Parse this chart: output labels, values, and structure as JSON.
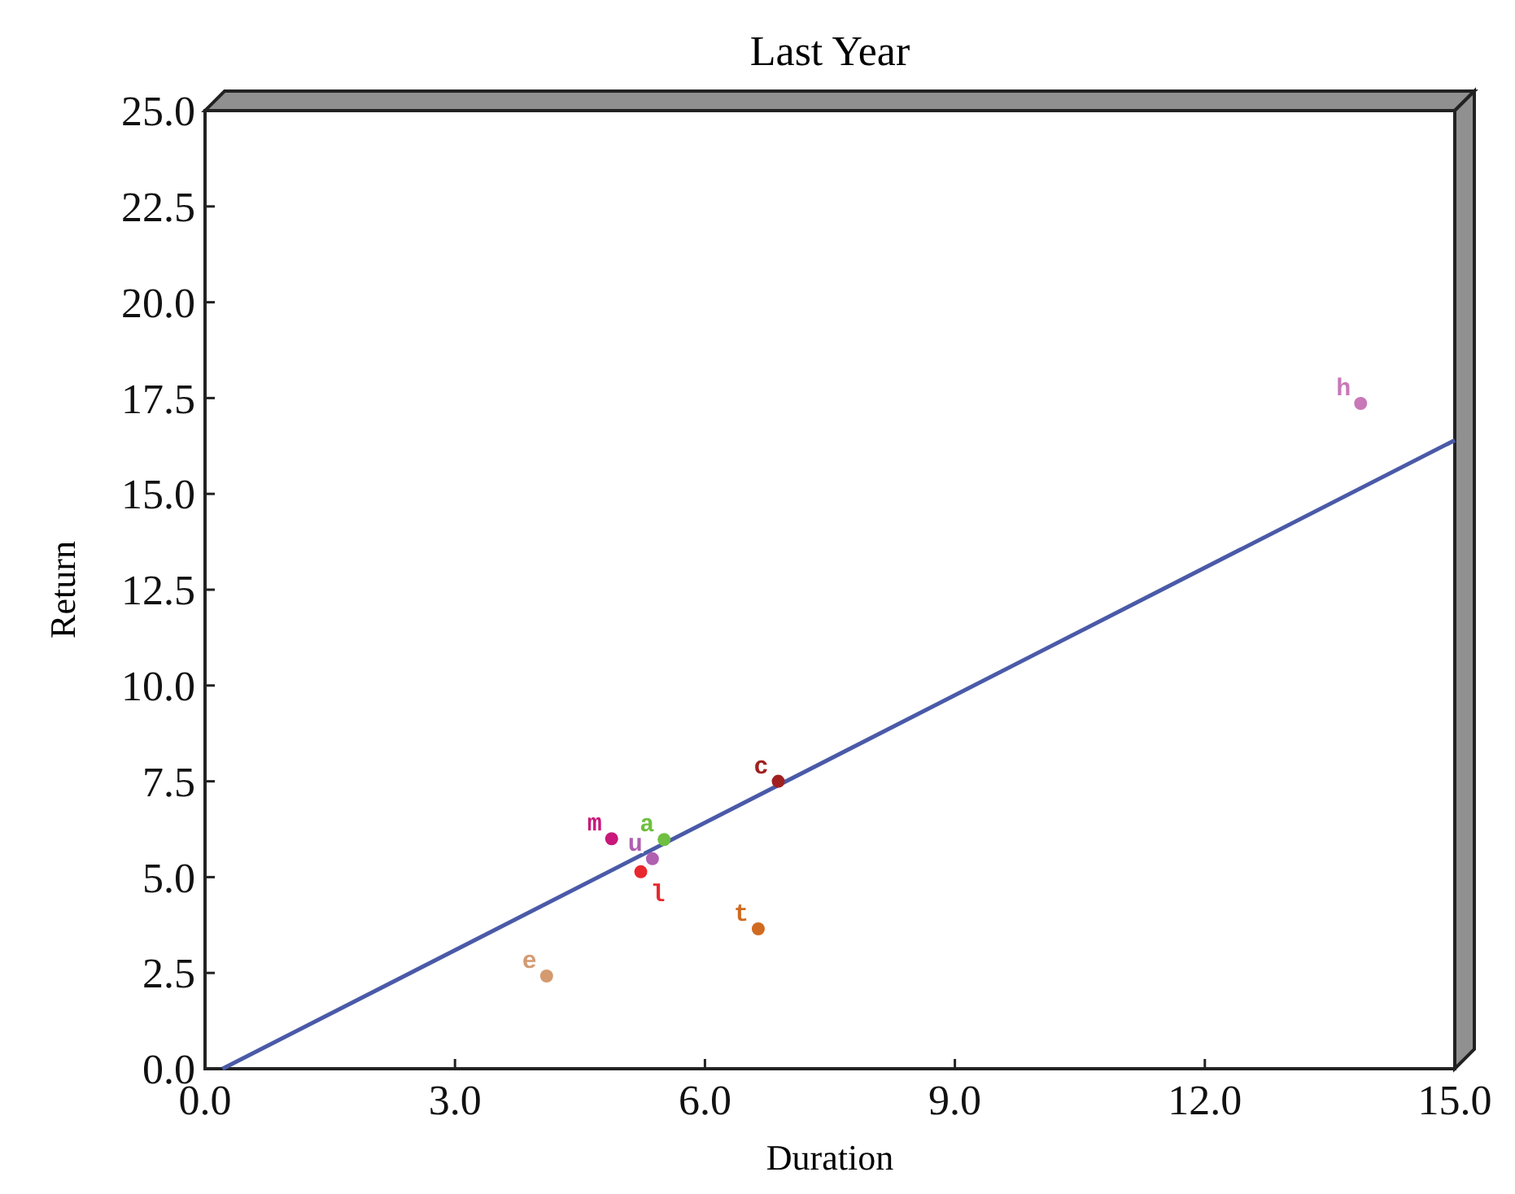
{
  "chart_data": {
    "type": "scatter",
    "title": "Last Year",
    "xlabel": "Duration",
    "ylabel": "Return",
    "xlim": [
      0,
      15
    ],
    "ylim": [
      0,
      25
    ],
    "xticks": [
      {
        "value": 0,
        "label": "0.0"
      },
      {
        "value": 3,
        "label": "3.0"
      },
      {
        "value": 6,
        "label": "6.0"
      },
      {
        "value": 9,
        "label": "9.0"
      },
      {
        "value": 12,
        "label": "12.0"
      },
      {
        "value": 15,
        "label": "15.0"
      }
    ],
    "yticks": [
      {
        "value": 0,
        "label": "0.0"
      },
      {
        "value": 2.5,
        "label": "2.5"
      },
      {
        "value": 5,
        "label": "5.0"
      },
      {
        "value": 7.5,
        "label": "7.5"
      },
      {
        "value": 10,
        "label": "10.0"
      },
      {
        "value": 12.5,
        "label": "12.5"
      },
      {
        "value": 15,
        "label": "15.0"
      },
      {
        "value": 17.5,
        "label": "17.5"
      },
      {
        "value": 20,
        "label": "20.0"
      },
      {
        "value": 22.5,
        "label": "22.5"
      },
      {
        "value": 25,
        "label": "25.0"
      }
    ],
    "grid": false,
    "legend": false,
    "marker": "circle",
    "series": [
      {
        "name": "m",
        "color": "#c8187a",
        "x": [
          4.88
        ],
        "values": [
          6.0
        ]
      },
      {
        "name": "a",
        "color": "#6fbf40",
        "x": [
          5.51
        ],
        "values": [
          5.98
        ]
      },
      {
        "name": "u",
        "color": "#b060b0",
        "x": [
          5.37
        ],
        "values": [
          5.48
        ]
      },
      {
        "name": "l",
        "color": "#e8282e",
        "x": [
          5.23
        ],
        "values": [
          5.14
        ]
      },
      {
        "name": "c",
        "color": "#a02020",
        "x": [
          6.88
        ],
        "values": [
          7.5
        ]
      },
      {
        "name": "t",
        "color": "#d06a20",
        "x": [
          6.64
        ],
        "values": [
          3.65
        ]
      },
      {
        "name": "e",
        "color": "#d49a70",
        "x": [
          4.1
        ],
        "values": [
          2.42
        ]
      },
      {
        "name": "h",
        "color": "#c878b8",
        "x": [
          13.87
        ],
        "values": [
          17.36
        ]
      },
      {
        "type": "line",
        "marker": "none",
        "color": "#4a5aa8",
        "x": [
          0.21,
          15
        ],
        "values": [
          0,
          16.4
        ]
      }
    ]
  }
}
